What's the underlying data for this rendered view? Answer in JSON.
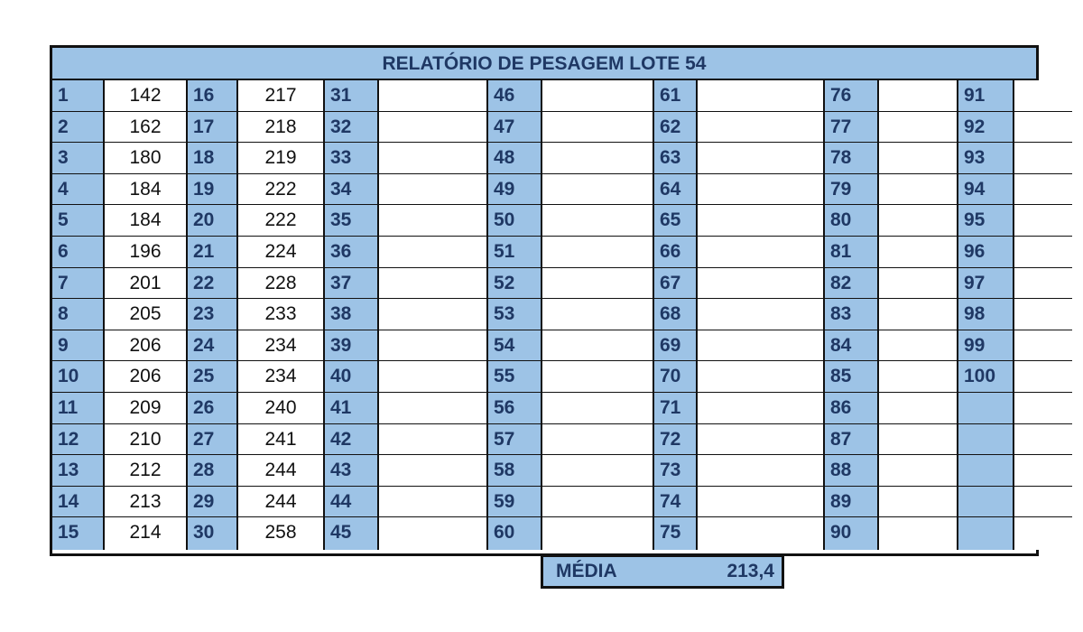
{
  "title": "RELATÓRIO DE PESAGEM LOTE 54",
  "weights": [
    142,
    162,
    180,
    184,
    184,
    196,
    201,
    205,
    206,
    206,
    209,
    210,
    212,
    213,
    214,
    217,
    218,
    219,
    222,
    222,
    224,
    228,
    233,
    234,
    234,
    240,
    241,
    244,
    244,
    258
  ],
  "max_number": 100,
  "summary": {
    "label": "MÉDIA",
    "value": "213,4"
  }
}
